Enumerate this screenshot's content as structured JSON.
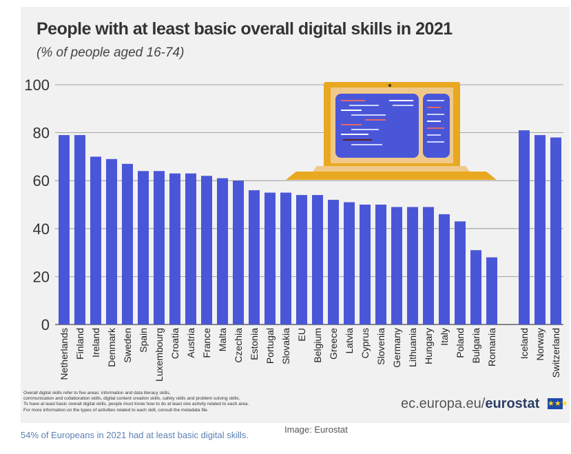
{
  "chart_data": {
    "type": "bar",
    "title": "People with at least basic overall digital skills  in 2021",
    "subtitle": "(% of people aged 16-74)",
    "categories": [
      "Netherlands",
      "Finland",
      "Ireland",
      "Denmark",
      "Sweden",
      "Spain",
      "Luxembourg",
      "Croatia",
      "Austria",
      "France",
      "Malta",
      "Czechia",
      "Estonia",
      "Portugal",
      "Slovakia",
      "EU",
      "Belgium",
      "Greece",
      "Latvia",
      "Cyprus",
      "Slovenia",
      "Germany",
      "Lithuania",
      "Hungary",
      "Italy",
      "Poland",
      "Bulgaria",
      "Romania",
      "Iceland",
      "Norway",
      "Switzerland"
    ],
    "values": [
      79,
      79,
      70,
      69,
      67,
      64,
      64,
      63,
      63,
      62,
      61,
      60,
      56,
      55,
      55,
      54,
      54,
      52,
      51,
      50,
      50,
      49,
      49,
      49,
      46,
      43,
      31,
      28,
      81,
      79,
      78
    ],
    "ylim": [
      0,
      100
    ],
    "yticks": [
      0,
      20,
      40,
      60,
      80,
      100
    ],
    "grid": true,
    "bar_color": "#4a56d8"
  },
  "notes": [
    "Overall digital skills refer to five areas: information and data literacy skills,",
    "communication and collaboration skills, digital content creation skills, safety skills and problem solving skills.",
    "To have at least basic overall digital skills, people must know how to do at least one activity related to each area.",
    "For more information on the types of activities related to each skill, consult the metadata file."
  ],
  "source": {
    "prefix": "ec.europa.eu/",
    "brand": "eurostat"
  },
  "caption": "54% of Europeans in 2021 had at least basic digital skills.",
  "credit": "Image: Eurostat",
  "colors": {
    "panel": "#f1f1f1",
    "laptop_frame": "#e8a820",
    "laptop_screen": "#4a56d8"
  }
}
